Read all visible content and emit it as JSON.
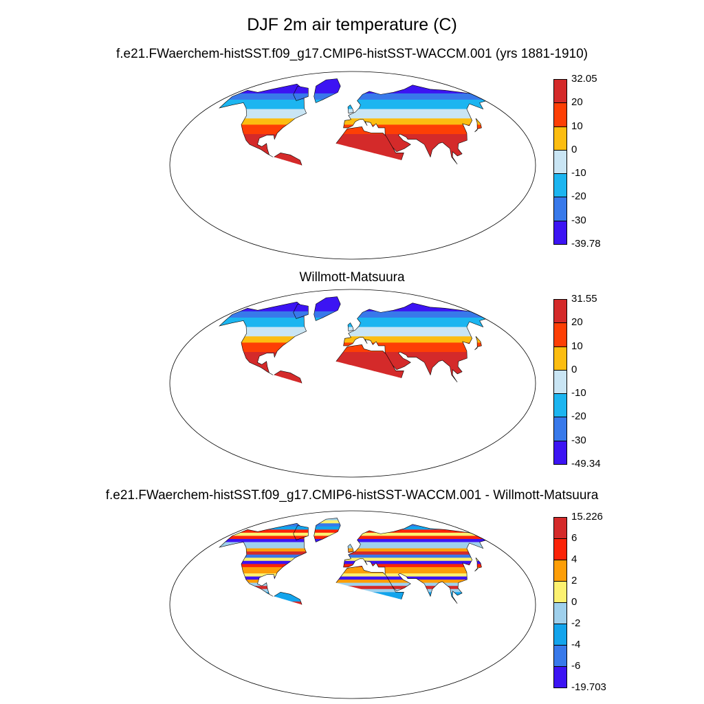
{
  "title": "DJF 2m air temperature (C)",
  "colors": {
    "temp": [
      "#3c14f3",
      "#3879ea",
      "#1cb5f0",
      "#c9e5f4",
      "#fcbd11",
      "#fd3f05",
      "#d42a2a"
    ],
    "diff": [
      "#3c14f3",
      "#3879ea",
      "#13a4ec",
      "#9fd0ec",
      "#fcf170",
      "#fd9e08",
      "#fb2308",
      "#d42a2a"
    ],
    "land_tropics_temp": "#d42a2a",
    "ocean": "#ffffff",
    "coast": "#000000"
  },
  "panels": [
    {
      "title": "f.e21.FWaerchem-histSST.f09_g17.CMIP6-histSST-WACCM.001 (yrs 1881-1910)",
      "colorbar": {
        "palette": "temp",
        "labels": [
          "32.05",
          "20",
          "10",
          "0",
          "-10",
          "-20",
          "-30",
          "-39.78"
        ]
      }
    },
    {
      "title": "Willmott-Matsuura",
      "colorbar": {
        "palette": "temp",
        "labels": [
          "31.55",
          "20",
          "10",
          "0",
          "-10",
          "-20",
          "-30",
          "-49.34"
        ]
      }
    },
    {
      "title": "f.e21.FWaerchem-histSST.f09_g17.CMIP6-histSST-WACCM.001 - Willmott-Matsuura",
      "colorbar": {
        "palette": "diff",
        "labels": [
          "15.226",
          "6",
          "4",
          "2",
          "0",
          "-2",
          "-4",
          "-6",
          "-19.703"
        ]
      }
    }
  ]
}
